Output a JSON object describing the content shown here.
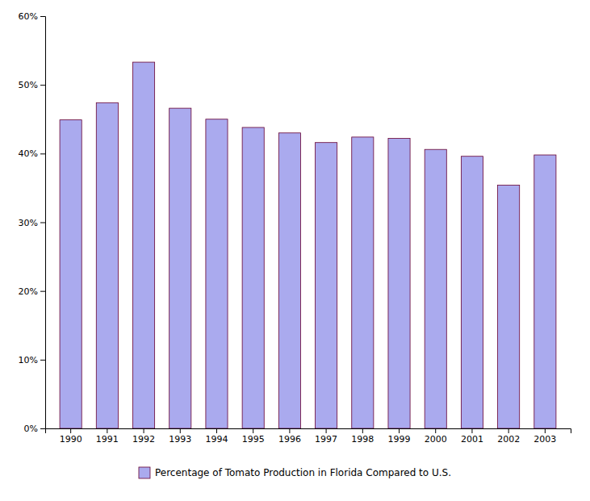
{
  "chart_data": {
    "type": "bar",
    "categories": [
      "1990",
      "1991",
      "1992",
      "1993",
      "1994",
      "1995",
      "1996",
      "1997",
      "1998",
      "1999",
      "2000",
      "2001",
      "2002",
      "2003"
    ],
    "series": [
      {
        "name": "Percentage of Tomato Production in Florida Compared to U.S.",
        "color": "#aaaaee",
        "values": [
          0.449,
          0.474,
          0.533,
          0.466,
          0.45,
          0.438,
          0.43,
          0.416,
          0.424,
          0.422,
          0.406,
          0.396,
          0.354,
          0.398
        ]
      }
    ],
    "ylim": [
      0,
      0.6
    ],
    "yticks": [
      {
        "value": 0.0,
        "label": "0%"
      },
      {
        "value": 0.1,
        "label": "10%"
      },
      {
        "value": 0.2,
        "label": "20%"
      },
      {
        "value": 0.3,
        "label": "30%"
      },
      {
        "value": 0.4,
        "label": "40%"
      },
      {
        "value": 0.5,
        "label": "50%"
      },
      {
        "value": 0.6,
        "label": "60%"
      }
    ],
    "grid": false,
    "legend": "bottom"
  }
}
